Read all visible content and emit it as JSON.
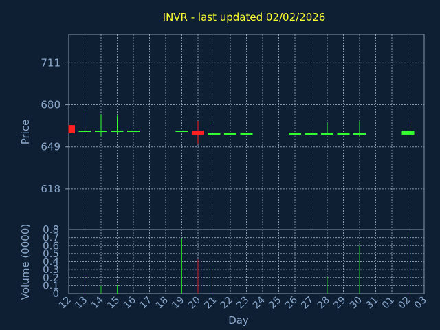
{
  "chart_data": {
    "type": "candlestick",
    "title": "INVR - last updated 02/02/2026",
    "xlabel": "Day",
    "x_ticks": [
      "12",
      "13",
      "14",
      "15",
      "16",
      "17",
      "18",
      "19",
      "20",
      "21",
      "22",
      "23",
      "24",
      "25",
      "26",
      "27",
      "28",
      "29",
      "30",
      "31",
      "01",
      "02",
      "03"
    ],
    "grid": true,
    "price_panel": {
      "ylabel": "Price",
      "yticks": [
        "618",
        "649",
        "680",
        "711"
      ],
      "ylim": [
        588,
        732
      ],
      "candles": [
        {
          "day": "12",
          "open": 659,
          "high": 665,
          "low": 659,
          "close": 665,
          "direction": "down"
        },
        {
          "day": "13",
          "open": 661,
          "high": 673,
          "low": 659,
          "close": 661,
          "direction": "up"
        },
        {
          "day": "14",
          "open": 661,
          "high": 673,
          "low": 657,
          "close": 661,
          "direction": "up"
        },
        {
          "day": "15",
          "open": 661,
          "high": 672,
          "low": 659,
          "close": 661,
          "direction": "up"
        },
        {
          "day": "16",
          "open": 661,
          "high": 661,
          "low": 661,
          "close": 661,
          "direction": "up"
        },
        {
          "day": "19",
          "open": 661,
          "high": 661,
          "low": 660,
          "close": 661,
          "direction": "up"
        },
        {
          "day": "20",
          "open": 658,
          "high": 668,
          "low": 651,
          "close": 661,
          "direction": "down"
        },
        {
          "day": "21",
          "open": 659,
          "high": 667,
          "low": 658,
          "close": 659,
          "direction": "up"
        },
        {
          "day": "22",
          "open": 659,
          "high": 659,
          "low": 659,
          "close": 659,
          "direction": "up"
        },
        {
          "day": "23",
          "open": 659,
          "high": 659,
          "low": 658,
          "close": 659,
          "direction": "up"
        },
        {
          "day": "26",
          "open": 659,
          "high": 659,
          "low": 659,
          "close": 659,
          "direction": "up"
        },
        {
          "day": "27",
          "open": 659,
          "high": 659,
          "low": 658,
          "close": 659,
          "direction": "up"
        },
        {
          "day": "28",
          "open": 659,
          "high": 667,
          "low": 659,
          "close": 659,
          "direction": "up"
        },
        {
          "day": "29",
          "open": 659,
          "high": 659,
          "low": 658,
          "close": 659,
          "direction": "up"
        },
        {
          "day": "30",
          "open": 659,
          "high": 668,
          "low": 656,
          "close": 659,
          "direction": "up"
        },
        {
          "day": "02",
          "open": 658,
          "high": 665,
          "low": 656,
          "close": 661,
          "direction": "up"
        }
      ]
    },
    "volume_panel": {
      "ylabel": "Volume (0000)",
      "yticks": [
        "0",
        "0.1",
        "0.2",
        "0.3",
        "0.4",
        "0.5",
        "0.6",
        "0.7",
        "0.8"
      ],
      "ylim": [
        0,
        0.8
      ],
      "bars": [
        {
          "day": "13",
          "value": 0.22,
          "direction": "up"
        },
        {
          "day": "14",
          "value": 0.1,
          "direction": "up"
        },
        {
          "day": "15",
          "value": 0.11,
          "direction": "up"
        },
        {
          "day": "19",
          "value": 0.69,
          "direction": "up"
        },
        {
          "day": "20",
          "value": 0.43,
          "direction": "down"
        },
        {
          "day": "21",
          "value": 0.32,
          "direction": "up"
        },
        {
          "day": "28",
          "value": 0.21,
          "direction": "up"
        },
        {
          "day": "30",
          "value": 0.6,
          "direction": "up"
        },
        {
          "day": "02",
          "value": 0.78,
          "direction": "up"
        }
      ]
    },
    "colors": {
      "background": "#0f1f33",
      "title": "#ffff33",
      "axis_text": "#8aa8cc",
      "up": "#33ff33",
      "down": "#ff2020",
      "up_volume": "#22cc22",
      "down_volume": "#cc2222",
      "grid": "#8899aa"
    }
  }
}
